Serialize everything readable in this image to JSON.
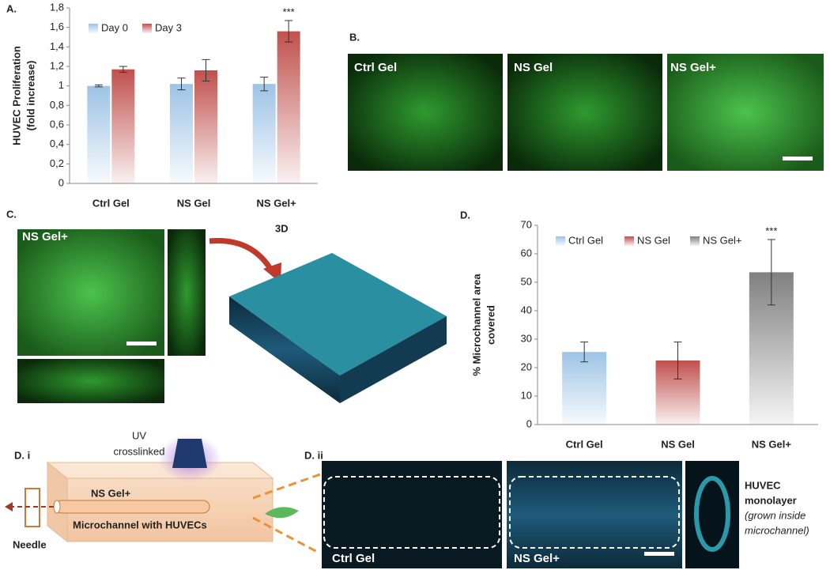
{
  "chart_data": [
    {
      "type": "bar",
      "categories": [
        "Ctrl Gel",
        "NS Gel",
        "NS Gel+"
      ],
      "series": [
        {
          "name": "Day 0",
          "color": "#9dc3e6",
          "values": [
            1.0,
            1.02,
            1.02
          ],
          "errors": [
            0.01,
            0.06,
            0.07
          ]
        },
        {
          "name": "Day 3",
          "color": "#c0504d",
          "values": [
            1.17,
            1.16,
            1.56
          ],
          "errors": [
            0.03,
            0.11,
            0.11
          ]
        }
      ],
      "ylabel": [
        "HUVEC Proliferation",
        "(fold increase)"
      ],
      "ylim": [
        0,
        1.8
      ],
      "yticks": [
        0,
        {
          "value": 0.2,
          "label": "0,2"
        },
        {
          "value": 0.4,
          "label": "0,4"
        },
        {
          "value": 0.6,
          "label": "0,6"
        },
        {
          "value": 0.8,
          "label": "0,8"
        },
        1,
        {
          "value": 1.2,
          "label": "1,2"
        },
        {
          "value": 1.4,
          "label": "1,4"
        },
        {
          "value": 1.6,
          "label": "1,6"
        },
        {
          "value": 1.8,
          "label": "1,8"
        }
      ],
      "annotation": "***"
    },
    {
      "type": "bar",
      "categories": [
        "Ctrl Gel",
        "NS Gel",
        "NS Gel+"
      ],
      "values": [
        25.5,
        22.5,
        53.5
      ],
      "errors": [
        3.5,
        6.5,
        11.5
      ],
      "colors": [
        "#9dc3e6",
        "#c0504d",
        "#808080"
      ],
      "ylabel": [
        "% Microchannel area",
        "covered"
      ],
      "ylim": [
        0,
        70
      ],
      "yticks": [
        0,
        10,
        20,
        30,
        40,
        50,
        60,
        70
      ],
      "annotation": "***"
    }
  ],
  "panels": {
    "a": "A.",
    "b": "B.",
    "c": "C.",
    "d": "D.",
    "di": "D. i",
    "dii": "D. ii",
    "b_images": [
      "Ctrl Gel",
      "NS Gel",
      "NS Gel+"
    ],
    "c_image": "NS Gel+",
    "c_3d": "3D",
    "di_labels": {
      "uv": "UV",
      "crosslinked": "crosslinked",
      "gel": "NS Gel+",
      "channel": "Microchannel with HUVECs",
      "needle": "Needle"
    },
    "dii_images": [
      "Ctrl Gel",
      "NS Gel+"
    ],
    "dii_note": [
      "HUVEC",
      "monolayer",
      "(grown inside",
      "microchannel)"
    ]
  }
}
